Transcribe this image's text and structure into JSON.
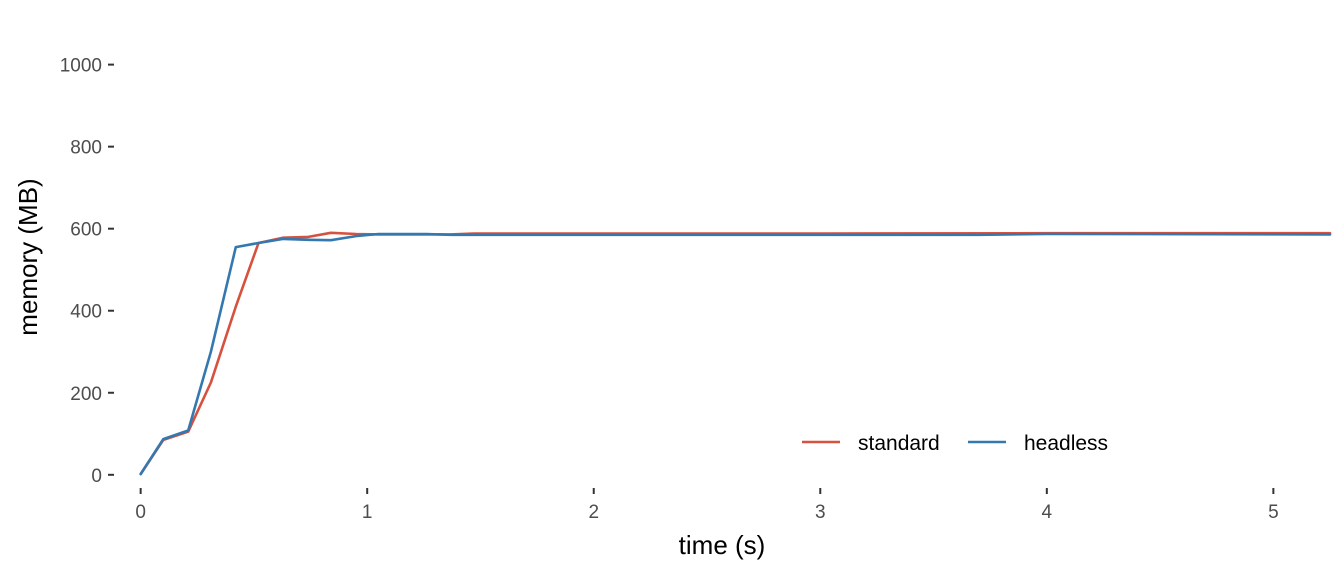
{
  "chart_data": {
    "type": "line",
    "title": "",
    "xlabel": "time (s)",
    "ylabel": "memory (MB)",
    "xlim": [
      -0.1,
      5.25
    ],
    "ylim": [
      -20,
      1060
    ],
    "x_ticks": [
      0,
      1,
      2,
      3,
      4,
      5
    ],
    "x_tick_labels": [
      "0",
      "1",
      "2",
      "3",
      "4",
      "5"
    ],
    "y_ticks": [
      0,
      200,
      400,
      600,
      800,
      1000
    ],
    "y_tick_labels": [
      "0",
      "200",
      "400",
      "600",
      "800",
      "1000"
    ],
    "grid": false,
    "legend_position": "bottom-right",
    "series": [
      {
        "name": "standard",
        "color": "#D6513E",
        "points": [
          [
            0,
            2
          ],
          [
            0.1,
            85
          ],
          [
            0.21,
            105
          ],
          [
            0.31,
            225
          ],
          [
            0.42,
            410
          ],
          [
            0.52,
            565
          ],
          [
            0.63,
            578
          ],
          [
            0.74,
            580
          ],
          [
            0.84,
            590
          ],
          [
            0.95,
            587
          ],
          [
            1.05,
            586
          ],
          [
            1.16,
            586
          ],
          [
            1.26,
            586
          ],
          [
            1.37,
            586
          ],
          [
            1.47,
            588
          ],
          [
            2,
            588
          ],
          [
            3,
            588
          ],
          [
            4,
            589
          ],
          [
            5.25,
            589
          ]
        ]
      },
      {
        "name": "headless",
        "color": "#3478B0",
        "points": [
          [
            0,
            2
          ],
          [
            0.1,
            87
          ],
          [
            0.21,
            108
          ],
          [
            0.31,
            300
          ],
          [
            0.42,
            555
          ],
          [
            0.52,
            565
          ],
          [
            0.63,
            575
          ],
          [
            0.74,
            573
          ],
          [
            0.84,
            572
          ],
          [
            0.95,
            582
          ],
          [
            1.05,
            587
          ],
          [
            1.16,
            587
          ],
          [
            1.26,
            587
          ],
          [
            1.37,
            585
          ],
          [
            1.47,
            585
          ],
          [
            2,
            585
          ],
          [
            3,
            585
          ],
          [
            3.7,
            585
          ],
          [
            4,
            587
          ],
          [
            5.25,
            586
          ]
        ]
      }
    ]
  }
}
